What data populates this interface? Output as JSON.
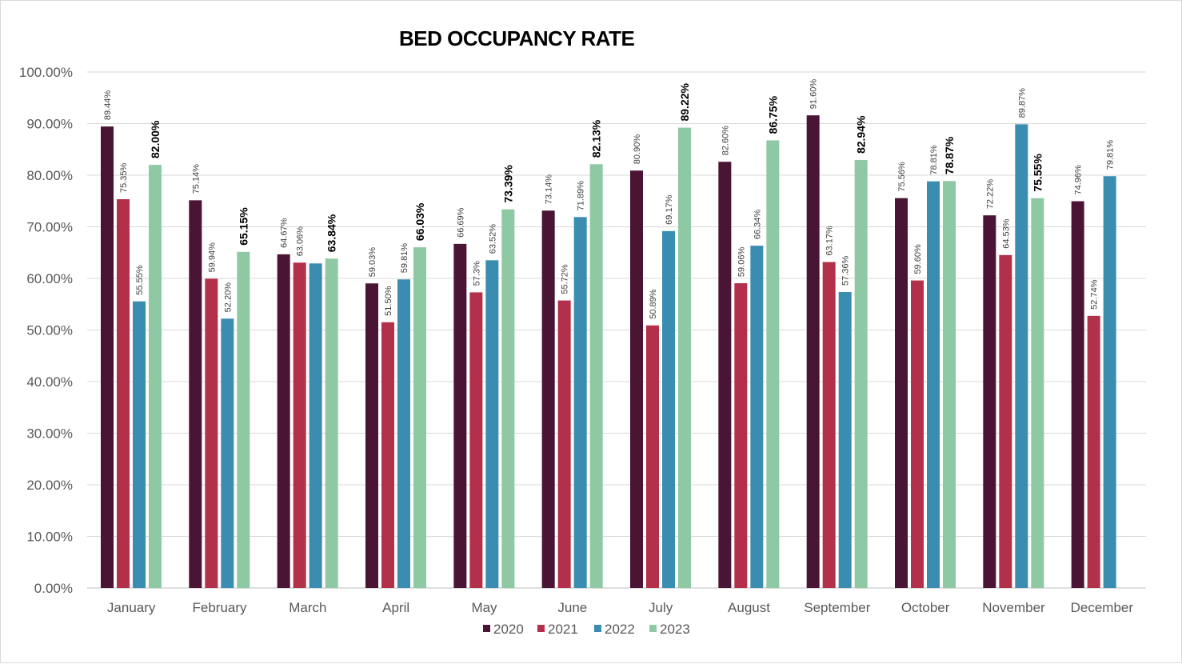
{
  "chart_data": {
    "type": "bar",
    "title": "BED OCCUPANCY RATE",
    "xlabel": "",
    "ylabel": "",
    "ylim": [
      0,
      100
    ],
    "y_ticks": [
      "0.00%",
      "10.00%",
      "20.00%",
      "30.00%",
      "40.00%",
      "50.00%",
      "60.00%",
      "70.00%",
      "80.00%",
      "90.00%",
      "100.00%"
    ],
    "grid": true,
    "legend_position": "bottom",
    "categories": [
      "January",
      "February",
      "March",
      "April",
      "May",
      "June",
      "July",
      "August",
      "September",
      "October",
      "November",
      "December"
    ],
    "series": [
      {
        "name": "2020",
        "color": "#4a1535",
        "bold_labels": false,
        "values": [
          89.44,
          75.14,
          64.67,
          59.03,
          66.69,
          73.14,
          80.9,
          82.6,
          91.6,
          75.56,
          72.22,
          74.96
        ],
        "labels": [
          "89.44%",
          "75.14%",
          "64.67%",
          "59.03%",
          "66.69%",
          "73.14%",
          "80.90%",
          "82.60%",
          "91.60%",
          "75.56%",
          "72.22%",
          "74.96%"
        ]
      },
      {
        "name": "2021",
        "color": "#b3304a",
        "bold_labels": false,
        "values": [
          75.35,
          59.94,
          63.06,
          51.5,
          57.3,
          55.72,
          50.89,
          59.06,
          63.17,
          59.6,
          64.53,
          52.74
        ],
        "labels": [
          "75.35%",
          "59.94%",
          "63.06%",
          "51.50%",
          "57.3%",
          "55.72%",
          "50.89%",
          "59.06%",
          "63.17%",
          "59.60%",
          "64.53%",
          "52.74%"
        ]
      },
      {
        "name": "2022",
        "color": "#3a8db0",
        "bold_labels": false,
        "values": [
          55.55,
          52.2,
          62.9,
          59.81,
          63.52,
          71.89,
          69.17,
          66.34,
          57.36,
          78.81,
          89.87,
          79.81
        ],
        "labels": [
          "55.55%",
          "52.20%",
          null,
          "59.81%",
          "63.52%",
          "71.89%",
          "69.17%",
          "66.34%",
          "57.36%",
          "78.81%",
          "89.87%",
          "79.81%"
        ]
      },
      {
        "name": "2023",
        "color": "#8ec9a4",
        "bold_labels": true,
        "values": [
          82.0,
          65.15,
          63.84,
          66.03,
          73.39,
          82.13,
          89.22,
          86.75,
          82.94,
          78.87,
          75.55,
          null
        ],
        "labels": [
          "82.00%",
          "65.15%",
          "63.84%",
          "66.03%",
          "73.39%",
          "82.13%",
          "89.22%",
          "86.75%",
          "82.94%",
          "78.87%",
          "75.55%",
          null
        ]
      }
    ]
  }
}
